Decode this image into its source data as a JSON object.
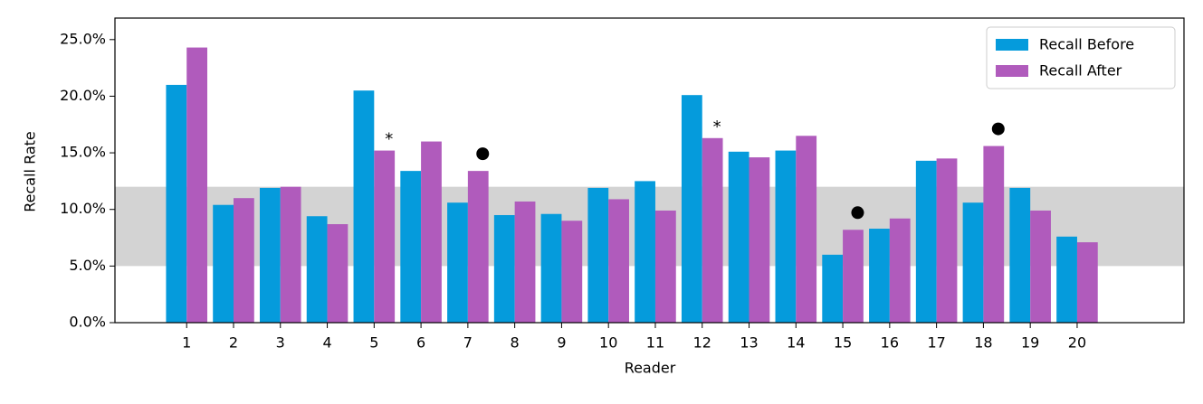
{
  "chart_data": {
    "type": "bar",
    "x_label": "Reader",
    "y_label": "Recall Rate",
    "categories": [
      1,
      2,
      3,
      4,
      5,
      6,
      7,
      8,
      9,
      10,
      11,
      12,
      13,
      14,
      15,
      16,
      17,
      18,
      19,
      20
    ],
    "series": [
      {
        "name": "Recall Before",
        "color": "#059bdc",
        "values": [
          21.0,
          10.4,
          11.9,
          9.4,
          20.5,
          13.4,
          10.6,
          9.5,
          9.6,
          11.9,
          12.5,
          20.1,
          15.1,
          15.2,
          6.0,
          8.3,
          14.3,
          10.6,
          11.9,
          7.6
        ]
      },
      {
        "name": "Recall After",
        "color": "#b05bbc",
        "values": [
          24.3,
          11.0,
          12.0,
          8.7,
          15.2,
          16.0,
          13.4,
          10.7,
          9.0,
          10.9,
          9.9,
          16.3,
          14.6,
          16.5,
          8.2,
          9.2,
          14.5,
          15.6,
          9.9,
          7.1
        ]
      }
    ],
    "xlim": [
      -0.53,
      22.28
    ],
    "xticks": [
      1,
      2,
      3,
      4,
      5,
      6,
      7,
      8,
      9,
      10,
      11,
      12,
      13,
      14,
      15,
      16,
      17,
      18,
      19,
      20
    ],
    "ylim": [
      0,
      26.9
    ],
    "yticks": [
      {
        "value": 0,
        "label": "0.0%"
      },
      {
        "value": 5,
        "label": "5.0%"
      },
      {
        "value": 10,
        "label": "10.0%"
      },
      {
        "value": 15,
        "label": "15.0%"
      },
      {
        "value": 20,
        "label": "20.0%"
      },
      {
        "value": 25,
        "label": "25.0%"
      }
    ],
    "band": [
      5,
      12
    ],
    "band_color": "#d3d3d3",
    "star_annotations": [
      {
        "x": 5,
        "label": "*"
      },
      {
        "x": 12,
        "label": "*"
      }
    ],
    "dot_annotations": [
      7,
      15,
      18
    ],
    "legend": "upper right"
  }
}
